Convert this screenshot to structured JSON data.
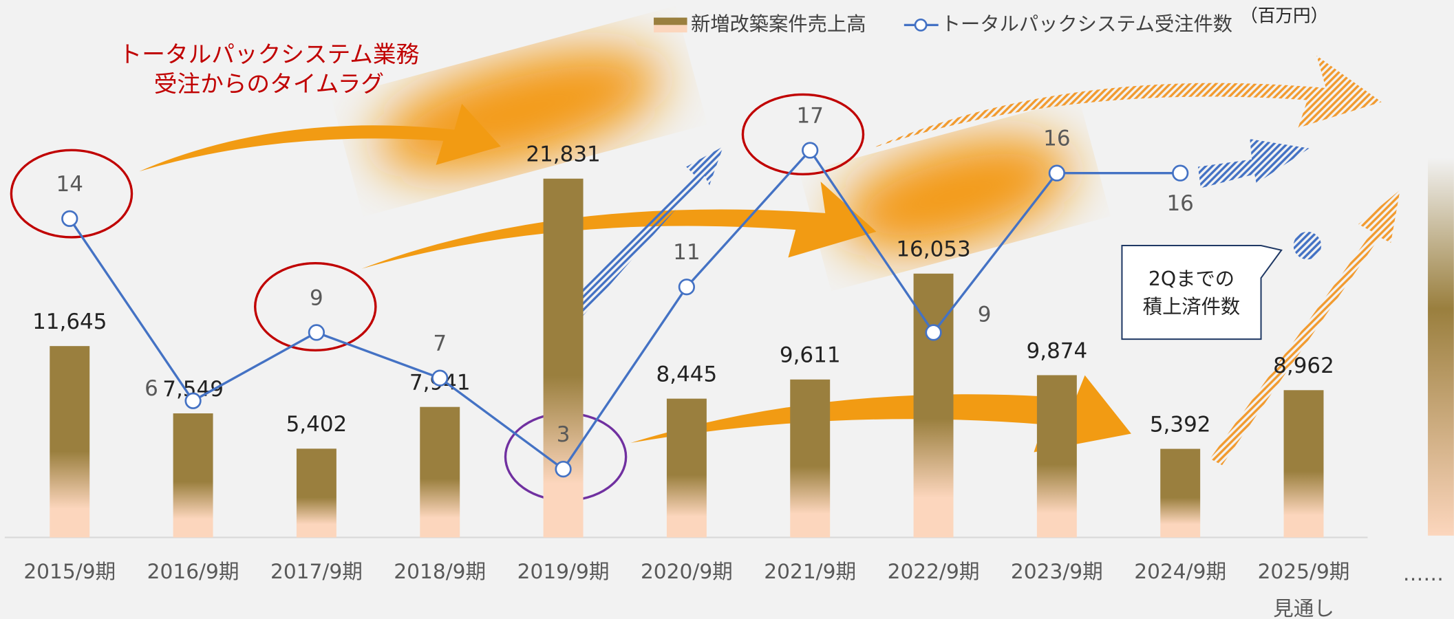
{
  "chart_data": {
    "type": "bar+line",
    "categories": [
      "2015/9期",
      "2016/9期",
      "2017/9期",
      "2018/9期",
      "2019/9期",
      "2020/9期",
      "2021/9期",
      "2022/9期",
      "2023/9期",
      "2024/9期",
      "2025/9期"
    ],
    "series": [
      {
        "name": "新増改築案件売上高",
        "type": "bar",
        "color": "#9a7f3e",
        "values": [
          11645,
          7549,
          5402,
          7941,
          21831,
          8445,
          9611,
          16053,
          9874,
          5392,
          8962
        ],
        "value_labels": [
          "11,645",
          "7,549",
          "5,402",
          "7,941",
          "21,831",
          "8,445",
          "9,611",
          "16,053",
          "9,874",
          "5,392",
          "8,962"
        ]
      },
      {
        "name": "トータルパックシステム受注件数",
        "type": "line",
        "color": "#4472c4",
        "axis": "y2",
        "values": [
          14,
          6,
          9,
          7,
          3,
          11,
          17,
          9,
          16,
          16,
          null
        ]
      }
    ],
    "ylim": [
      0,
      32700
    ],
    "y2lim": [
      0,
      23.6
    ],
    "unit": "（百万円）",
    "annotations": [
      "トータルパックシステム業務",
      "受注からのタイムラグ",
      "2Qまでの",
      "積上済件数",
      "見通し",
      "……"
    ]
  }
}
